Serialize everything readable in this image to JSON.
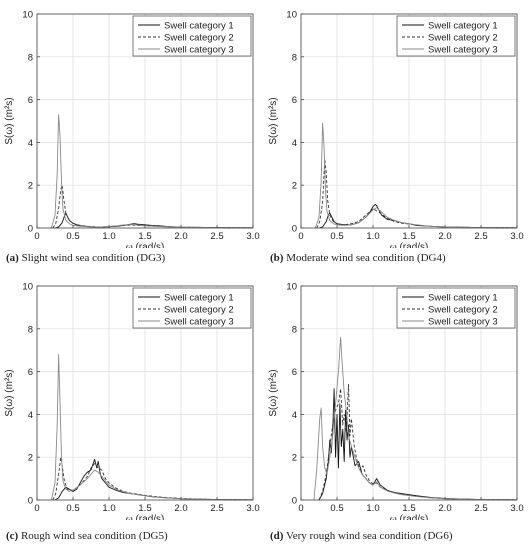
{
  "chart_data": [
    {
      "type": "line",
      "caption_tag": "(a)",
      "caption_text": "Slight wind sea condition (DG3)",
      "xlabel_sym": "ω",
      "xlabel_unit": "(rad/s)",
      "ylabel": "S(ω) (m²s)",
      "xlim": [
        0,
        3.0
      ],
      "ylim": [
        0,
        10
      ],
      "xticks": [
        "0",
        "0.5",
        "1.0",
        "1.5",
        "2.0",
        "2.5",
        "3.0"
      ],
      "yticks": [
        "0",
        "2",
        "4",
        "6",
        "8",
        "10"
      ],
      "grid": true,
      "legend": "top-right",
      "series": [
        {
          "name": "Swell category 1",
          "style": "solid",
          "color": "#111111",
          "x": [
            0.25,
            0.3,
            0.35,
            0.38,
            0.4,
            0.42,
            0.45,
            0.5,
            0.55,
            0.6,
            0.7,
            0.8,
            0.9,
            1.0,
            1.1,
            1.2,
            1.3,
            1.35,
            1.4,
            1.5,
            1.6,
            1.7,
            1.8,
            2.0,
            2.2,
            2.5,
            3.0
          ],
          "y": [
            0,
            0.05,
            0.25,
            0.55,
            0.7,
            0.55,
            0.35,
            0.22,
            0.15,
            0.1,
            0.07,
            0.05,
            0.05,
            0.06,
            0.08,
            0.12,
            0.18,
            0.2,
            0.18,
            0.15,
            0.12,
            0.1,
            0.07,
            0.04,
            0.03,
            0.02,
            0.01
          ]
        },
        {
          "name": "Swell category 2",
          "style": "dashed",
          "color": "#333333",
          "x": [
            0.22,
            0.26,
            0.3,
            0.33,
            0.35,
            0.37,
            0.4,
            0.45,
            0.5,
            0.6,
            0.7,
            0.8,
            0.9,
            1.0,
            1.1,
            1.2,
            1.3,
            1.4,
            1.5,
            1.7,
            2.0,
            2.5,
            3.0
          ],
          "y": [
            0,
            0.2,
            0.9,
            1.8,
            2.0,
            1.4,
            0.7,
            0.35,
            0.22,
            0.12,
            0.08,
            0.06,
            0.05,
            0.06,
            0.08,
            0.11,
            0.14,
            0.12,
            0.1,
            0.07,
            0.04,
            0.02,
            0.01
          ]
        },
        {
          "name": "Swell category 3",
          "style": "solid",
          "color": "#8a8a8a",
          "x": [
            0.2,
            0.25,
            0.28,
            0.3,
            0.32,
            0.34,
            0.36,
            0.4,
            0.45,
            0.5,
            0.6,
            0.7,
            0.8,
            0.9,
            1.0,
            1.1,
            1.2,
            1.3,
            1.4,
            1.5,
            1.7,
            2.0,
            2.5,
            3.0
          ],
          "y": [
            0,
            0.6,
            2.5,
            5.3,
            4.3,
            2.2,
            0.9,
            0.35,
            0.2,
            0.12,
            0.08,
            0.06,
            0.05,
            0.05,
            0.07,
            0.1,
            0.14,
            0.16,
            0.14,
            0.11,
            0.07,
            0.04,
            0.02,
            0.01
          ]
        }
      ]
    },
    {
      "type": "line",
      "caption_tag": "(b)",
      "caption_text": "Moderate wind sea condition (DG4)",
      "xlabel_sym": "ω",
      "xlabel_unit": "(rad/s)",
      "ylabel": "S(ω) (m²s)",
      "xlim": [
        0,
        3.0
      ],
      "ylim": [
        0,
        10
      ],
      "xticks": [
        "0",
        "0.5",
        "1.0",
        "1.5",
        "2.0",
        "2.5",
        "3.0"
      ],
      "yticks": [
        "0",
        "2",
        "4",
        "6",
        "8",
        "10"
      ],
      "grid": true,
      "legend": "top-right",
      "series": [
        {
          "name": "Swell category 1",
          "style": "solid",
          "color": "#111111",
          "x": [
            0.25,
            0.3,
            0.35,
            0.38,
            0.4,
            0.43,
            0.46,
            0.5,
            0.6,
            0.7,
            0.8,
            0.9,
            0.95,
            1.0,
            1.03,
            1.05,
            1.08,
            1.12,
            1.2,
            1.3,
            1.4,
            1.5,
            1.6,
            1.8,
            2.0,
            2.5,
            3.0
          ],
          "y": [
            0,
            0.05,
            0.3,
            0.6,
            0.7,
            0.5,
            0.3,
            0.2,
            0.15,
            0.15,
            0.25,
            0.5,
            0.7,
            1.0,
            1.1,
            1.05,
            0.85,
            0.6,
            0.4,
            0.35,
            0.25,
            0.2,
            0.12,
            0.08,
            0.05,
            0.02,
            0.01
          ]
        },
        {
          "name": "Swell category 2",
          "style": "dashed",
          "color": "#333333",
          "x": [
            0.22,
            0.26,
            0.3,
            0.33,
            0.35,
            0.37,
            0.4,
            0.45,
            0.5,
            0.6,
            0.7,
            0.8,
            0.9,
            1.0,
            1.05,
            1.1,
            1.2,
            1.3,
            1.4,
            1.6,
            1.8,
            2.0,
            2.5,
            3.0
          ],
          "y": [
            0,
            0.3,
            1.2,
            3.2,
            2.6,
            1.3,
            0.6,
            0.3,
            0.2,
            0.15,
            0.2,
            0.3,
            0.6,
            0.9,
            0.8,
            0.7,
            0.45,
            0.3,
            0.22,
            0.15,
            0.08,
            0.05,
            0.02,
            0.01
          ]
        },
        {
          "name": "Swell category 3",
          "style": "solid",
          "color": "#8a8a8a",
          "x": [
            0.2,
            0.25,
            0.28,
            0.3,
            0.32,
            0.34,
            0.36,
            0.4,
            0.45,
            0.5,
            0.6,
            0.7,
            0.8,
            0.9,
            1.0,
            1.05,
            1.1,
            1.2,
            1.3,
            1.4,
            1.6,
            1.8,
            2.0,
            2.5,
            3.0
          ],
          "y": [
            0,
            0.5,
            2.2,
            4.9,
            3.8,
            1.8,
            0.8,
            0.35,
            0.2,
            0.15,
            0.12,
            0.15,
            0.25,
            0.5,
            0.85,
            0.95,
            0.8,
            0.5,
            0.35,
            0.25,
            0.15,
            0.08,
            0.05,
            0.02,
            0.01
          ]
        }
      ]
    },
    {
      "type": "line",
      "caption_tag": "(c)",
      "caption_text": "Rough wind sea condition (DG5)",
      "xlabel_sym": "ω",
      "xlabel_unit": "(rad/s)",
      "ylabel": "S(ω) (m²s)",
      "xlim": [
        0,
        3.0
      ],
      "ylim": [
        0,
        10
      ],
      "xticks": [
        "0",
        "0.5",
        "1.0",
        "1.5",
        "2.0",
        "2.5",
        "3.0"
      ],
      "yticks": [
        "0",
        "2",
        "4",
        "6",
        "8",
        "10"
      ],
      "grid": true,
      "legend": "top-right",
      "series": [
        {
          "name": "Swell category 1",
          "style": "solid",
          "color": "#111111",
          "x": [
            0.25,
            0.3,
            0.35,
            0.4,
            0.45,
            0.5,
            0.55,
            0.6,
            0.65,
            0.7,
            0.75,
            0.78,
            0.8,
            0.83,
            0.85,
            0.88,
            0.9,
            0.95,
            1.0,
            1.1,
            1.2,
            1.3,
            1.4,
            1.6,
            1.8,
            2.0,
            2.5,
            3.0
          ],
          "y": [
            0,
            0.1,
            0.4,
            0.6,
            0.5,
            0.4,
            0.5,
            0.8,
            1.1,
            1.3,
            1.4,
            1.7,
            1.9,
            1.5,
            1.8,
            1.2,
            1.0,
            0.8,
            0.6,
            0.45,
            0.35,
            0.3,
            0.25,
            0.15,
            0.1,
            0.06,
            0.02,
            0.01
          ]
        },
        {
          "name": "Swell category 2",
          "style": "dashed",
          "color": "#333333",
          "x": [
            0.22,
            0.26,
            0.3,
            0.33,
            0.35,
            0.38,
            0.42,
            0.5,
            0.6,
            0.7,
            0.75,
            0.8,
            0.85,
            0.9,
            0.95,
            1.0,
            1.1,
            1.2,
            1.3,
            1.5,
            1.7,
            2.0,
            2.5,
            3.0
          ],
          "y": [
            0,
            0.3,
            1.2,
            2.0,
            1.6,
            0.9,
            0.5,
            0.45,
            0.7,
            1.1,
            1.5,
            1.7,
            1.5,
            1.4,
            1.0,
            0.8,
            0.55,
            0.4,
            0.32,
            0.22,
            0.14,
            0.07,
            0.02,
            0.01
          ]
        },
        {
          "name": "Swell category 3",
          "style": "solid",
          "color": "#8a8a8a",
          "x": [
            0.2,
            0.25,
            0.28,
            0.3,
            0.32,
            0.34,
            0.36,
            0.4,
            0.45,
            0.5,
            0.6,
            0.7,
            0.75,
            0.8,
            0.85,
            0.9,
            1.0,
            1.1,
            1.2,
            1.3,
            1.5,
            1.7,
            2.0,
            2.5,
            3.0
          ],
          "y": [
            0,
            0.8,
            3.5,
            6.8,
            4.5,
            2.0,
            0.9,
            0.5,
            0.4,
            0.45,
            0.7,
            1.0,
            1.2,
            1.4,
            1.3,
            1.1,
            0.7,
            0.5,
            0.38,
            0.3,
            0.2,
            0.12,
            0.06,
            0.02,
            0.01
          ]
        }
      ]
    },
    {
      "type": "line",
      "caption_tag": "(d)",
      "caption_text": "Very rough wind sea condition (DG6)",
      "xlabel_sym": "ω",
      "xlabel_unit": "(rad/s)",
      "ylabel": "S(ω) (m²s)",
      "xlim": [
        0,
        3.0
      ],
      "ylim": [
        0,
        10
      ],
      "xticks": [
        "0",
        "0.5",
        "1.0",
        "1.5",
        "2.0",
        "2.5",
        "3.0"
      ],
      "yticks": [
        "0",
        "2",
        "4",
        "6",
        "8",
        "10"
      ],
      "grid": true,
      "legend": "top-right",
      "series": [
        {
          "name": "Swell category 1",
          "style": "solid",
          "color": "#111111",
          "x": [
            0.25,
            0.3,
            0.35,
            0.38,
            0.4,
            0.42,
            0.44,
            0.46,
            0.48,
            0.5,
            0.52,
            0.54,
            0.56,
            0.58,
            0.6,
            0.62,
            0.64,
            0.66,
            0.68,
            0.7,
            0.75,
            0.8,
            0.85,
            0.9,
            0.95,
            1.0,
            1.05,
            1.1,
            1.2,
            1.3,
            1.4,
            1.6,
            1.8,
            2.0,
            2.5,
            3.0
          ],
          "y": [
            0,
            0.3,
            1.0,
            1.8,
            2.8,
            2.2,
            3.2,
            5.2,
            2.0,
            4.0,
            1.5,
            4.5,
            2.5,
            3.3,
            1.8,
            4.2,
            2.8,
            3.5,
            2.0,
            2.5,
            1.6,
            1.8,
            1.2,
            1.0,
            0.8,
            0.7,
            1.0,
            0.7,
            0.45,
            0.35,
            0.3,
            0.2,
            0.12,
            0.07,
            0.02,
            0.01
          ]
        },
        {
          "name": "Swell category 2",
          "style": "dashed",
          "color": "#333333",
          "x": [
            0.25,
            0.3,
            0.35,
            0.4,
            0.44,
            0.48,
            0.52,
            0.55,
            0.58,
            0.6,
            0.63,
            0.66,
            0.68,
            0.7,
            0.74,
            0.78,
            0.82,
            0.86,
            0.9,
            0.95,
            1.0,
            1.05,
            1.1,
            1.2,
            1.3,
            1.4,
            1.6,
            1.8,
            2.0,
            2.5,
            3.0
          ],
          "y": [
            0,
            0.4,
            1.2,
            2.5,
            3.5,
            4.2,
            4.5,
            5.2,
            3.5,
            4.0,
            3.2,
            5.4,
            3.0,
            3.8,
            2.5,
            1.8,
            1.4,
            1.6,
            1.2,
            0.9,
            0.75,
            0.8,
            0.6,
            0.45,
            0.35,
            0.28,
            0.18,
            0.1,
            0.06,
            0.02,
            0.01
          ]
        },
        {
          "name": "Swell category 3",
          "style": "solid",
          "color": "#8a8a8a",
          "x": [
            0.18,
            0.22,
            0.26,
            0.28,
            0.3,
            0.33,
            0.36,
            0.4,
            0.44,
            0.48,
            0.52,
            0.55,
            0.57,
            0.6,
            0.63,
            0.66,
            0.7,
            0.75,
            0.8,
            0.85,
            0.9,
            0.95,
            1.0,
            1.05,
            1.1,
            1.2,
            1.3,
            1.4,
            1.6,
            1.8,
            2.0,
            2.5,
            3.0
          ],
          "y": [
            0,
            1.5,
            3.8,
            4.3,
            2.5,
            1.5,
            1.2,
            2.0,
            3.0,
            4.5,
            6.0,
            7.6,
            6.5,
            5.0,
            4.2,
            3.0,
            2.5,
            2.0,
            1.5,
            1.2,
            1.0,
            0.8,
            0.7,
            0.85,
            0.6,
            0.42,
            0.32,
            0.25,
            0.16,
            0.1,
            0.06,
            0.02,
            0.01
          ]
        }
      ]
    }
  ]
}
